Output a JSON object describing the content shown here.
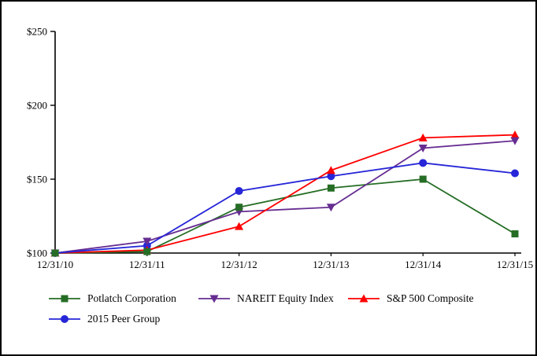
{
  "chart_data": {
    "type": "line",
    "title": "",
    "xlabel": "",
    "ylabel": "",
    "x": [
      "12/31/10",
      "12/31/11",
      "12/31/12",
      "12/31/13",
      "12/31/14",
      "12/31/15"
    ],
    "series": [
      {
        "name": "Potlatch Corporation",
        "marker": "square",
        "color": "#256d25",
        "values": [
          100,
          101,
          131,
          144,
          150,
          113
        ]
      },
      {
        "name": "NAREIT Equity Index",
        "marker": "triangle-down",
        "color": "#662d91",
        "values": [
          100,
          108,
          128,
          131,
          171,
          176
        ]
      },
      {
        "name": "S&P 500 Composite",
        "marker": "triangle-up",
        "color": "#ff0000",
        "values": [
          100,
          102,
          118,
          156,
          178,
          180
        ]
      },
      {
        "name": "2015 Peer Group",
        "marker": "circle",
        "color": "#2626d8",
        "values": [
          100,
          105,
          142,
          152,
          161,
          154
        ]
      }
    ],
    "ylim": [
      100,
      250
    ],
    "yticks": [
      100,
      150,
      200,
      250
    ],
    "ytick_labels": [
      "$100",
      "$150",
      "$200",
      "$250"
    ],
    "axis_color": "#000000",
    "background": "#ffffff",
    "grid": false,
    "legend_position": "bottom"
  }
}
